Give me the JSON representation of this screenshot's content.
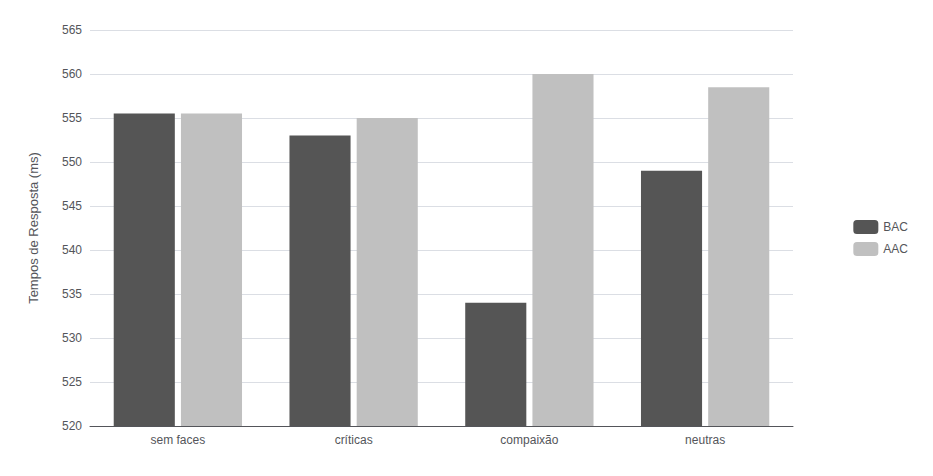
{
  "chart_data": {
    "type": "bar",
    "ylabel": "Tempos de Resposta (ms)",
    "categories": [
      "sem faces",
      "críticas",
      "compaixão",
      "neutras"
    ],
    "series": [
      {
        "name": "BAC",
        "color": "#555555",
        "values": [
          555.5,
          553.0,
          534.0,
          549.0
        ]
      },
      {
        "name": "AAC",
        "color": "#c0c0c0",
        "values": [
          555.5,
          555.0,
          560.0,
          558.5
        ]
      }
    ],
    "ylim": [
      520,
      565
    ],
    "yticks": [
      520,
      525,
      530,
      535,
      540,
      545,
      550,
      555,
      560,
      565
    ],
    "grid": true,
    "legend": "right"
  }
}
